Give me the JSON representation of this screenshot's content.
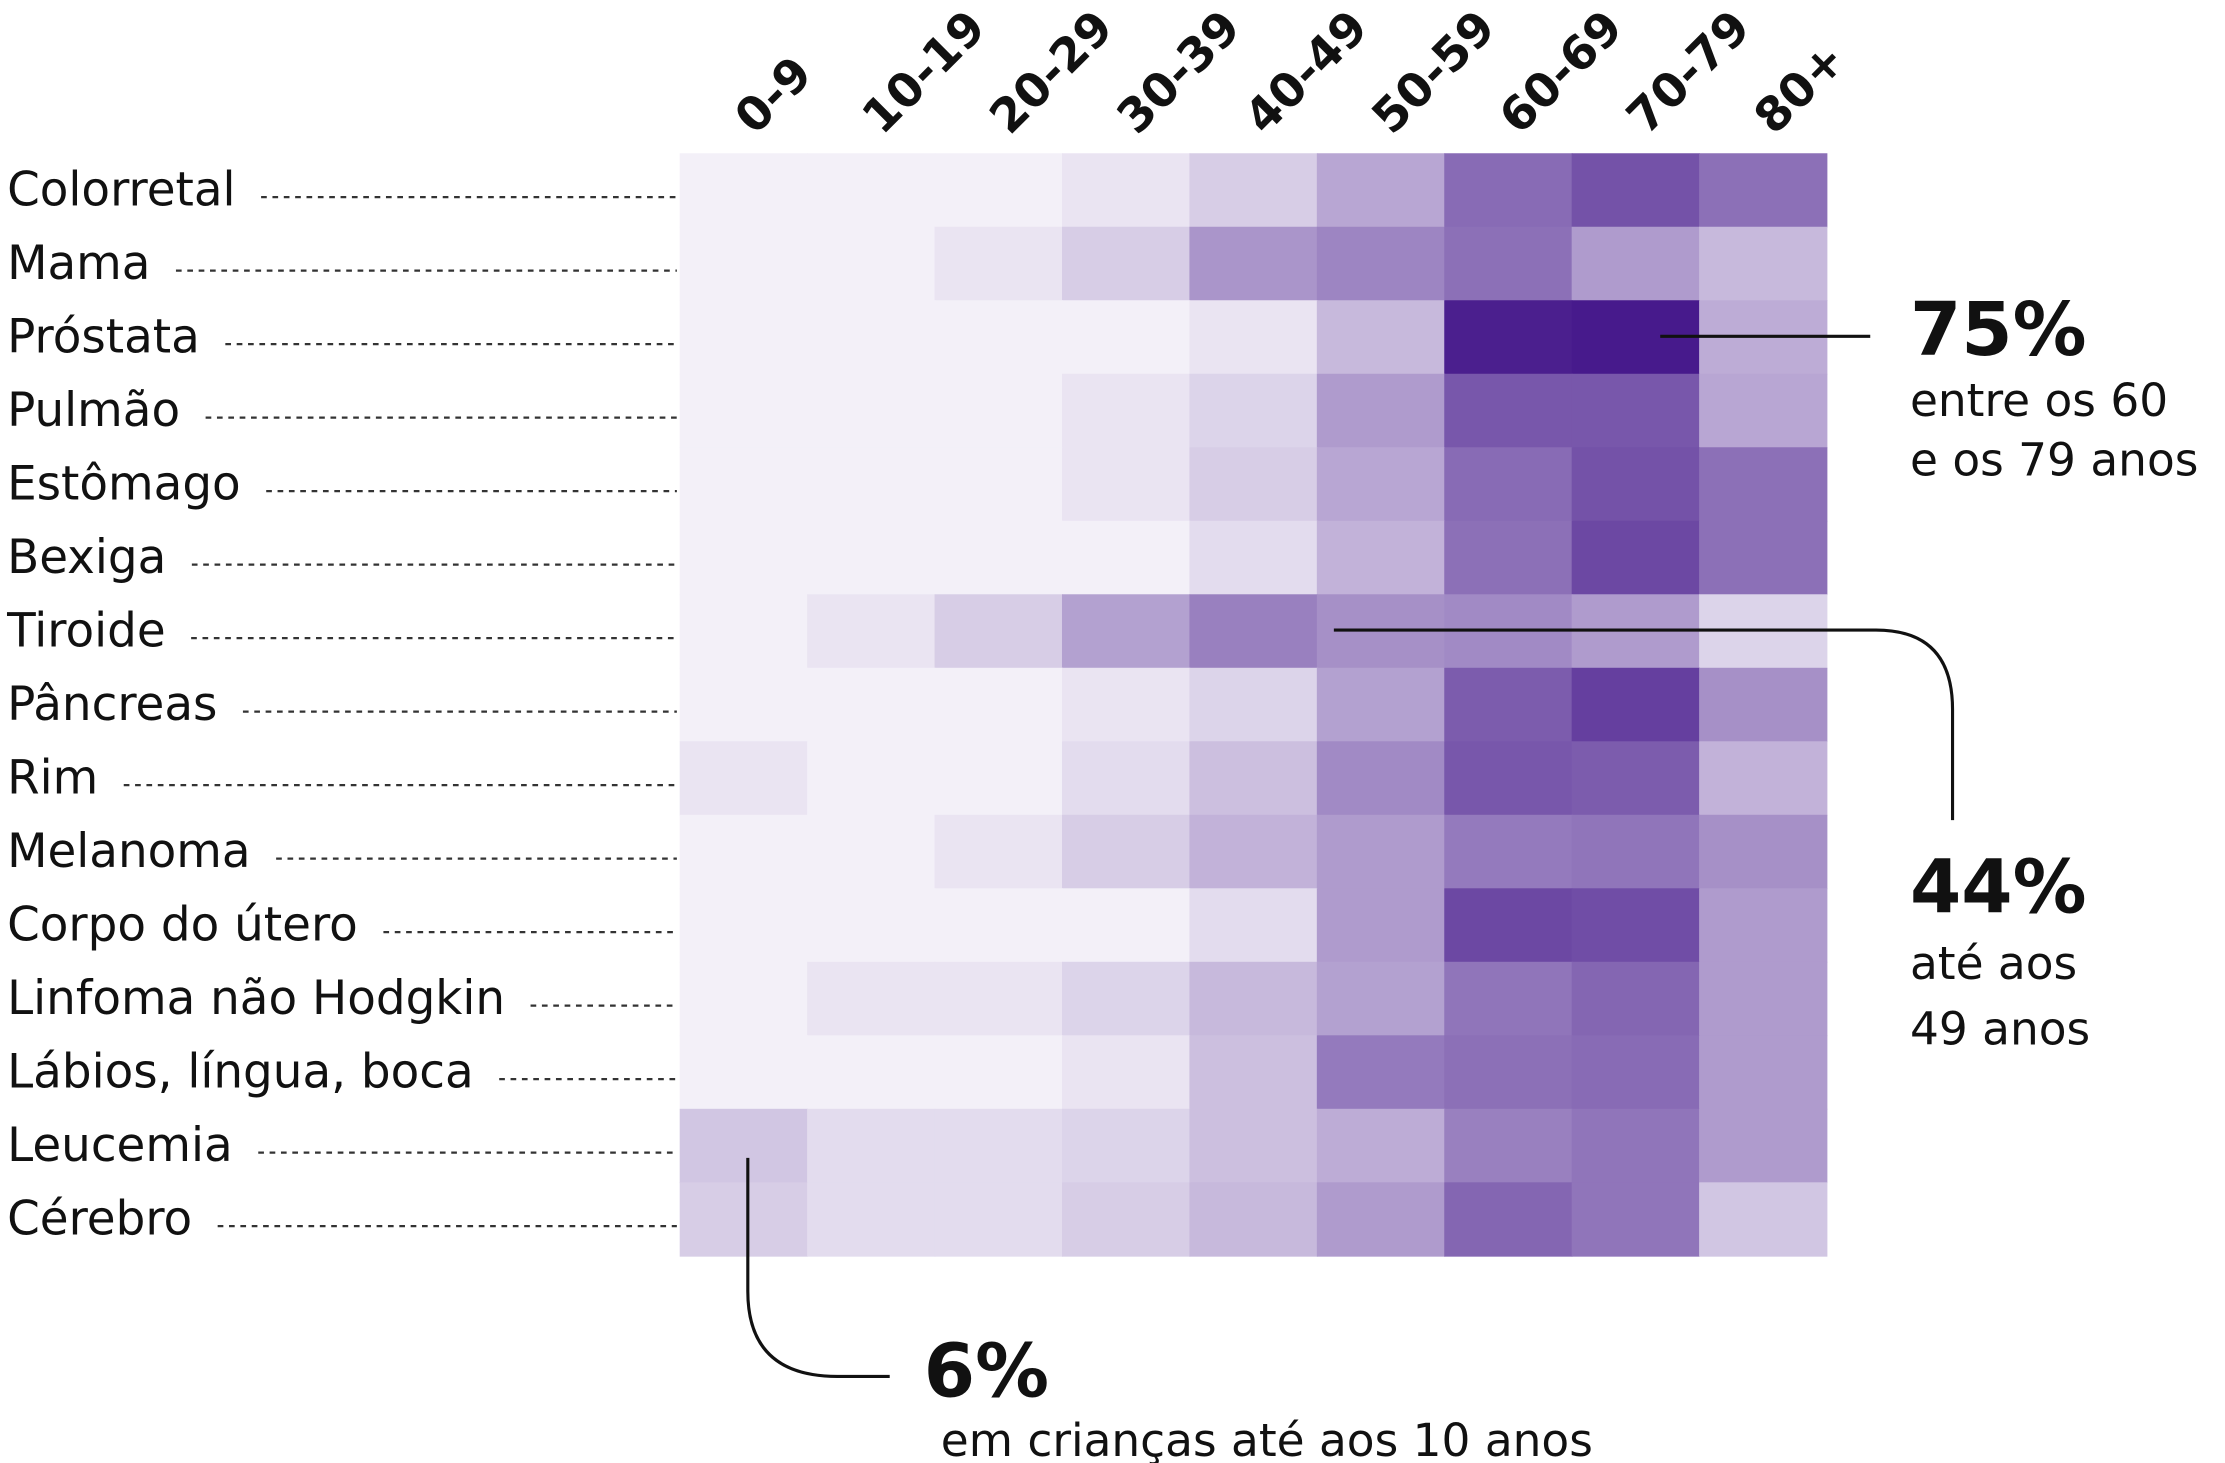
{
  "chart_data": {
    "type": "heatmap",
    "title": "",
    "x_labels": [
      "0-9",
      "10-19",
      "20-29",
      "30-39",
      "40-49",
      "50-59",
      "60-69",
      "70-79",
      "80+"
    ],
    "y_labels": [
      "Colorretal",
      "Mama",
      "Próstata",
      "Pulmão",
      "Estômago",
      "Bexiga",
      "Tiroide",
      "Pâncreas",
      "Rim",
      "Melanoma",
      "Corpo do útero",
      "Linfoma não Hodgkin",
      "Lábios, língua, boca",
      "Leucemia",
      "Cérebro"
    ],
    "values": [
      [
        0,
        0,
        0,
        1,
        4,
        10,
        21,
        26,
        20
      ],
      [
        0,
        0,
        1,
        4,
        13,
        16,
        20,
        12,
        7
      ],
      [
        0,
        0,
        0,
        0,
        1,
        7,
        37,
        38,
        9
      ],
      [
        0,
        0,
        0,
        1,
        3,
        12,
        25,
        25,
        10
      ],
      [
        0,
        0,
        0,
        1,
        4,
        10,
        21,
        26,
        20
      ],
      [
        0,
        0,
        0,
        0,
        2,
        8,
        20,
        28,
        20
      ],
      [
        0,
        1,
        4,
        11,
        17,
        14,
        15,
        12,
        3
      ],
      [
        0,
        0,
        0,
        1,
        3,
        11,
        24,
        30,
        14
      ],
      [
        1,
        0,
        0,
        2,
        6,
        15,
        25,
        24,
        8
      ],
      [
        0,
        0,
        1,
        4,
        8,
        12,
        18,
        19,
        14
      ],
      [
        0,
        0,
        0,
        0,
        2,
        12,
        28,
        27,
        12
      ],
      [
        0,
        1,
        1,
        3,
        7,
        11,
        19,
        22,
        12
      ],
      [
        0,
        0,
        0,
        1,
        6,
        18,
        20,
        21,
        12
      ],
      [
        5,
        2,
        2,
        3,
        6,
        9,
        17,
        19,
        12
      ],
      [
        4,
        2,
        2,
        4,
        7,
        12,
        22,
        19,
        5
      ]
    ],
    "legend": "none",
    "colors": {
      "low": "#f3f0f8",
      "high": "#471a8c"
    }
  },
  "annotations": [
    {
      "value": "75%",
      "lines": [
        "entre os 60",
        "e os 79 anos"
      ]
    },
    {
      "value": "44%",
      "lines": [
        "até aos",
        "49 anos"
      ]
    },
    {
      "value": "6%",
      "lines": [
        "em crianças até aos 10 anos"
      ]
    }
  ]
}
